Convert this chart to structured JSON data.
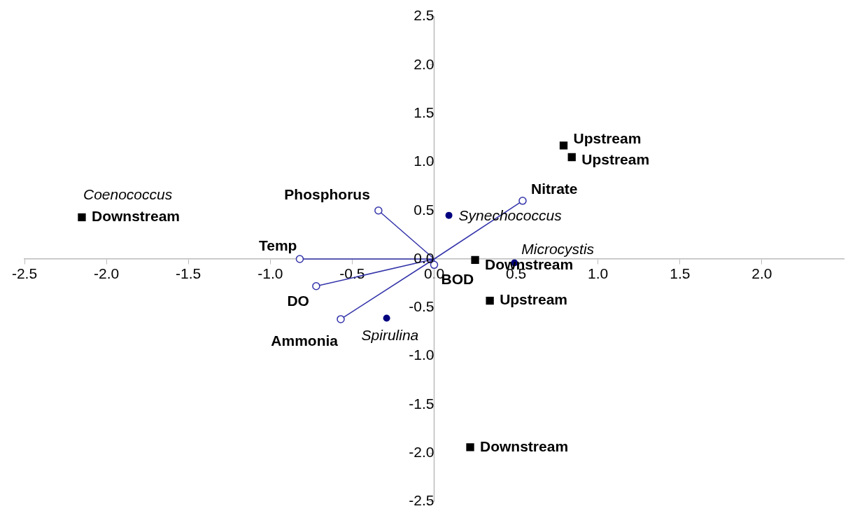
{
  "chart_data": {
    "type": "scatter",
    "xlim": [
      -2.5,
      2.5
    ],
    "xticks": [
      {
        "value": -2.5,
        "label": "-2.5"
      },
      {
        "value": -2,
        "label": "-2.0"
      },
      {
        "value": -1.5,
        "label": "-1.5"
      },
      {
        "value": -1,
        "label": "-1.0"
      },
      {
        "value": -0.5,
        "label": "-0.5"
      },
      {
        "value": 0,
        "label": "0.0"
      },
      {
        "value": 0.5,
        "label": "0.5"
      },
      {
        "value": 1,
        "label": "1.0"
      },
      {
        "value": 1.5,
        "label": "1.5"
      },
      {
        "value": 2,
        "label": "2.0"
      }
    ],
    "ylim": [
      -2.5,
      2.5
    ],
    "yticks": [
      {
        "value": -2.5,
        "label": "-2.5"
      },
      {
        "value": -2,
        "label": "-2.0"
      },
      {
        "value": -1.5,
        "label": "-1.5"
      },
      {
        "value": -1,
        "label": "-1.0"
      },
      {
        "value": -0.5,
        "label": "-0.5"
      },
      {
        "value": 0,
        "label": "0.0"
      },
      {
        "value": 0.5,
        "label": "0.5"
      },
      {
        "value": 1,
        "label": "1.0"
      },
      {
        "value": 1.5,
        "label": "1.5"
      },
      {
        "value": 2,
        "label": "2.0"
      },
      {
        "value": 2.5,
        "label": "2.5"
      }
    ],
    "grid": false,
    "legend": false,
    "series": [
      {
        "type": "scatter",
        "marker": "square",
        "color": "#000000",
        "x": [
          0.79,
          0.84,
          -2.15,
          0.25,
          0.34,
          0.22
        ],
        "values": [
          1.17,
          1.05,
          0.43,
          -0.01,
          -0.43,
          -1.94
        ],
        "value_labels": [
          "Upstream",
          "Upstream",
          "Downstream",
          "Downstream",
          "Upstream",
          "Downstream"
        ]
      },
      {
        "type": "scatter",
        "marker": "circle",
        "color": "#00007f",
        "x": [
          0.09,
          0.49,
          -0.29
        ],
        "values": [
          0.45,
          -0.04,
          -0.61
        ],
        "value_labels": [
          "Synechococcus",
          "Microcystis",
          "Spirulina"
        ]
      },
      {
        "type": "line",
        "marker": "circle",
        "color": "#3333aa",
        "x": [
          0,
          -0.34,
          0,
          0.54,
          0,
          -0.82,
          0,
          -0.72,
          0,
          -0.57,
          0,
          0.0
        ],
        "values": [
          0,
          0.5,
          0,
          0.6,
          0,
          0.0,
          0,
          -0.28,
          0,
          -0.62,
          0,
          -0.06
        ],
        "value_labels": [
          null,
          "Phosphorus",
          null,
          "Nitrate",
          null,
          "Temp",
          null,
          "DO",
          null,
          "Ammonia",
          null,
          "BOD"
        ]
      }
    ],
    "annotations": [
      {
        "text": "Coenococcus",
        "x": -2.15,
        "y": 0.45
      }
    ]
  }
}
